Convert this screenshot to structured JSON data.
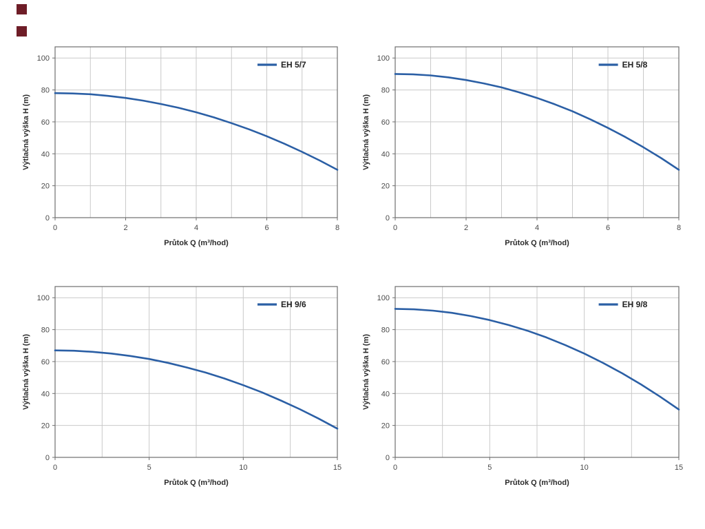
{
  "page": {
    "background": "#ffffff"
  },
  "logo": {
    "color": "#6e1d27"
  },
  "charts_shared": {
    "curve_color": "#2b5fa5",
    "grid_color": "#c9c9c9",
    "axis_color": "#6e6e6e",
    "tick_text_color": "#4a4a4a",
    "label_text_color": "#2b2b2b"
  },
  "chart_data": [
    {
      "type": "line",
      "legend": "EH 5/7",
      "xlabel": "Průtok Q (m³/hod)",
      "ylabel": "Výtlačná výška H (m)",
      "xlim": [
        0,
        8
      ],
      "ylim": [
        0,
        107
      ],
      "xticks": [
        0,
        2,
        4,
        6,
        8
      ],
      "yticks": [
        0,
        20,
        40,
        60,
        80,
        100
      ],
      "x_grid_step": 1,
      "y_grid_step": 20,
      "x": [
        0,
        0.5,
        1,
        1.5,
        2,
        2.5,
        3,
        3.5,
        4,
        4.5,
        5,
        5.5,
        6,
        6.5,
        7,
        7.5,
        8
      ],
      "y": [
        78,
        77.8,
        77.3,
        76.3,
        75,
        73.3,
        71.2,
        68.8,
        66,
        62.8,
        59.2,
        55.3,
        51,
        46.3,
        41.2,
        35.8,
        30
      ]
    },
    {
      "type": "line",
      "legend": "EH 5/8",
      "xlabel": "Průtok Q (m³/hod)",
      "ylabel": "Výtlačná výška H (m)",
      "xlim": [
        0,
        8
      ],
      "ylim": [
        0,
        107
      ],
      "xticks": [
        0,
        2,
        4,
        6,
        8
      ],
      "yticks": [
        0,
        20,
        40,
        60,
        80,
        100
      ],
      "x_grid_step": 1,
      "y_grid_step": 20,
      "x": [
        0,
        0.5,
        1,
        1.5,
        2,
        2.5,
        3,
        3.5,
        4,
        4.5,
        5,
        5.5,
        6,
        6.5,
        7,
        7.5,
        8
      ],
      "y": [
        90,
        89.8,
        89.1,
        87.9,
        86.2,
        84.1,
        81.6,
        78.5,
        75,
        71,
        66.6,
        61.6,
        56.2,
        50.4,
        44.1,
        37.3,
        30
      ]
    },
    {
      "type": "line",
      "legend": "EH 9/6",
      "xlabel": "Průtok Q (m³/hod)",
      "ylabel": "Výtlačná výška H (m)",
      "xlim": [
        0,
        15
      ],
      "ylim": [
        0,
        107
      ],
      "xticks": [
        0,
        5,
        10,
        15
      ],
      "yticks": [
        0,
        20,
        40,
        60,
        80,
        100
      ],
      "x_grid_step": 2.5,
      "y_grid_step": 20,
      "x": [
        0,
        1,
        2,
        3,
        4,
        5,
        6,
        7,
        8,
        9,
        10,
        11,
        12,
        13,
        14,
        15
      ],
      "y": [
        67,
        66.8,
        66.1,
        65,
        63.5,
        61.6,
        59.2,
        56.3,
        53.1,
        49.4,
        45.2,
        40.7,
        35.6,
        30.2,
        24.3,
        18
      ]
    },
    {
      "type": "line",
      "legend": "EH 9/8",
      "xlabel": "Průtok Q (m³/hod)",
      "ylabel": "Výtlačná výška H (m)",
      "xlim": [
        0,
        15
      ],
      "ylim": [
        0,
        107
      ],
      "xticks": [
        0,
        5,
        10,
        15
      ],
      "yticks": [
        0,
        20,
        40,
        60,
        80,
        100
      ],
      "x_grid_step": 2.5,
      "y_grid_step": 20,
      "x": [
        0,
        1,
        2,
        3,
        4,
        5,
        6,
        7,
        8,
        9,
        10,
        11,
        12,
        13,
        14,
        15
      ],
      "y": [
        93,
        92.7,
        91.9,
        90.5,
        88.5,
        86,
        82.9,
        79.3,
        75.1,
        70.3,
        65,
        59.1,
        52.7,
        45.7,
        38.1,
        30
      ]
    }
  ]
}
